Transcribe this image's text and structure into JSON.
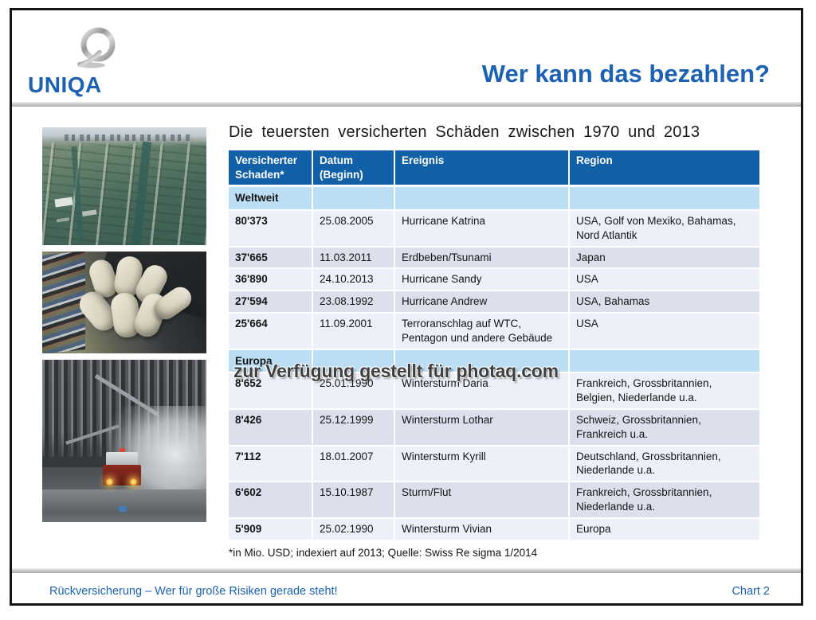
{
  "slide": {
    "header": {
      "logo_text": "UNIQA",
      "title": "Wer kann das bezahlen?"
    },
    "heading": "Die teuersten versicherten Schäden zwischen 1970 und 2013",
    "table": {
      "columns": [
        "Versicherter\nSchaden*",
        "Datum\n(Beginn)",
        "Ereignis",
        "Region"
      ],
      "sections": [
        {
          "label": "Weltweit",
          "rows": [
            {
              "damage": "80'373",
              "date": "25.08.2005",
              "event": "Hurricane Katrina",
              "region": "USA, Golf von Mexiko, Bahamas, Nord Atlantik"
            },
            {
              "damage": "37'665",
              "date": "11.03.2011",
              "event": "Erdbeben/Tsunami",
              "region": "Japan"
            },
            {
              "damage": "36'890",
              "date": "24.10.2013",
              "event": "Hurricane Sandy",
              "region": "USA"
            },
            {
              "damage": "27'594",
              "date": "23.08.1992",
              "event": "Hurricane Andrew",
              "region": "USA, Bahamas"
            },
            {
              "damage": "25'664",
              "date": "11.09.2001",
              "event": "Terroranschlag auf WTC, Pentagon und andere Gebäude",
              "region": "USA"
            }
          ]
        },
        {
          "label": "Europa",
          "rows": [
            {
              "damage": "8'652",
              "date": "25.01.1990",
              "event": "Wintersturm Daria",
              "region": "Frankreich, Grossbritannien, Belgien, Niederlande u.a."
            },
            {
              "damage": "8'426",
              "date": "25.12.1999",
              "event": "Wintersturm Lothar",
              "region": "Schweiz, Grossbritannien, Frankreich u.a."
            },
            {
              "damage": "7'112",
              "date": "18.01.2007",
              "event": "Wintersturm Kyrill",
              "region": "Deutschland, Grossbritannien, Niederlande u.a."
            },
            {
              "damage": "6'602",
              "date": "15.10.1987",
              "event": "Sturm/Flut",
              "region": "Frankreich, Grossbritannien, Niederlande u.a."
            },
            {
              "damage": "5'909",
              "date": "25.02.1990",
              "event": "Wintersturm Vivian",
              "region": "Europa"
            }
          ]
        }
      ]
    },
    "footnote": "*in Mio. USD; indexiert auf 2013; Quelle: Swiss Re sigma 1/2014",
    "watermark": "zur Verfügung gestellt für photaq.com",
    "footer": {
      "left": "Rückversicherung – Wer für große Risiken gerade steht!",
      "right": "Chart 2"
    },
    "photos": [
      {
        "name": "flood-aerial-photo"
      },
      {
        "name": "collapsed-tanks-photo"
      },
      {
        "name": "debris-firetruck-photo"
      }
    ],
    "colors": {
      "accent_blue": "#1c61b4",
      "table_header_blue": "#1260a7",
      "section_row_blue": "#bcdef4",
      "row_light": "#edf0f8",
      "row_dark": "#dce0ec"
    }
  }
}
